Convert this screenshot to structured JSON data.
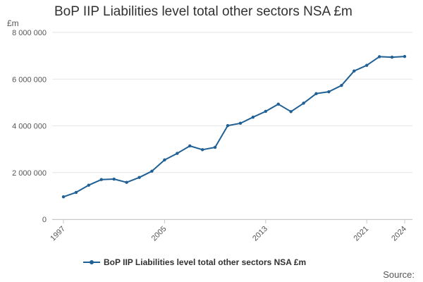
{
  "chart_data": {
    "type": "line",
    "title": "BoP IIP Liabilities level total other sectors NSA £m",
    "ylabel": "£m",
    "xlabel": "",
    "x": [
      "1997",
      "1998",
      "1999",
      "2000",
      "2001",
      "2002",
      "2003",
      "2004",
      "2005",
      "2006",
      "2007",
      "2008",
      "2009",
      "2010",
      "2011",
      "2012",
      "2013",
      "2014",
      "2015",
      "2016",
      "2017",
      "2018",
      "2019",
      "2020",
      "2021",
      "2022",
      "2023",
      "2024"
    ],
    "xticks": [
      "1997",
      "2005",
      "2013",
      "2021",
      "2024"
    ],
    "yticks": [
      "0",
      "2 000 000",
      "4 000 000",
      "6 000 000",
      "8 000 000"
    ],
    "ytick_values": [
      0,
      2000000,
      4000000,
      6000000,
      8000000
    ],
    "ylim": [
      0,
      8000000
    ],
    "grid": true,
    "legend_position": "bottom",
    "series": [
      {
        "name": "BoP IIP Liabilities level total other sectors NSA £m",
        "color": "#206095",
        "values": [
          960000,
          1150000,
          1460000,
          1700000,
          1720000,
          1580000,
          1790000,
          2060000,
          2540000,
          2820000,
          3140000,
          2980000,
          3080000,
          4010000,
          4110000,
          4370000,
          4620000,
          4930000,
          4610000,
          4970000,
          5380000,
          5460000,
          5730000,
          6350000,
          6590000,
          6960000,
          6940000,
          6970000
        ]
      }
    ]
  },
  "source": {
    "label": "Source:"
  }
}
